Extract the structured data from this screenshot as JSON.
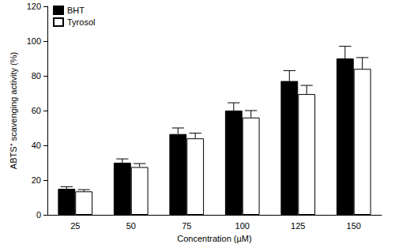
{
  "chart_data": {
    "type": "bar",
    "x_label": "Concentration (µM)",
    "y_label": "ABTS⁺ scavenging activity (%)",
    "categories": [
      "25",
      "50",
      "75",
      "100",
      "125",
      "150"
    ],
    "series": [
      {
        "name": "BHT",
        "color": "#000000",
        "values": [
          15,
          30,
          46.5,
          60,
          77,
          90
        ],
        "errors": [
          1.2,
          2.2,
          3.5,
          4.5,
          6,
          7
        ]
      },
      {
        "name": "Tyrosol",
        "color": "#ffffff",
        "values": [
          13.5,
          27.5,
          44,
          56,
          69.5,
          84
        ],
        "errors": [
          1,
          2,
          3,
          4,
          5,
          6.5
        ]
      }
    ],
    "ylim": [
      0,
      120
    ],
    "yticks": [
      0,
      20,
      40,
      60,
      80,
      100,
      120
    ],
    "grid": false,
    "legend": "upper left"
  }
}
